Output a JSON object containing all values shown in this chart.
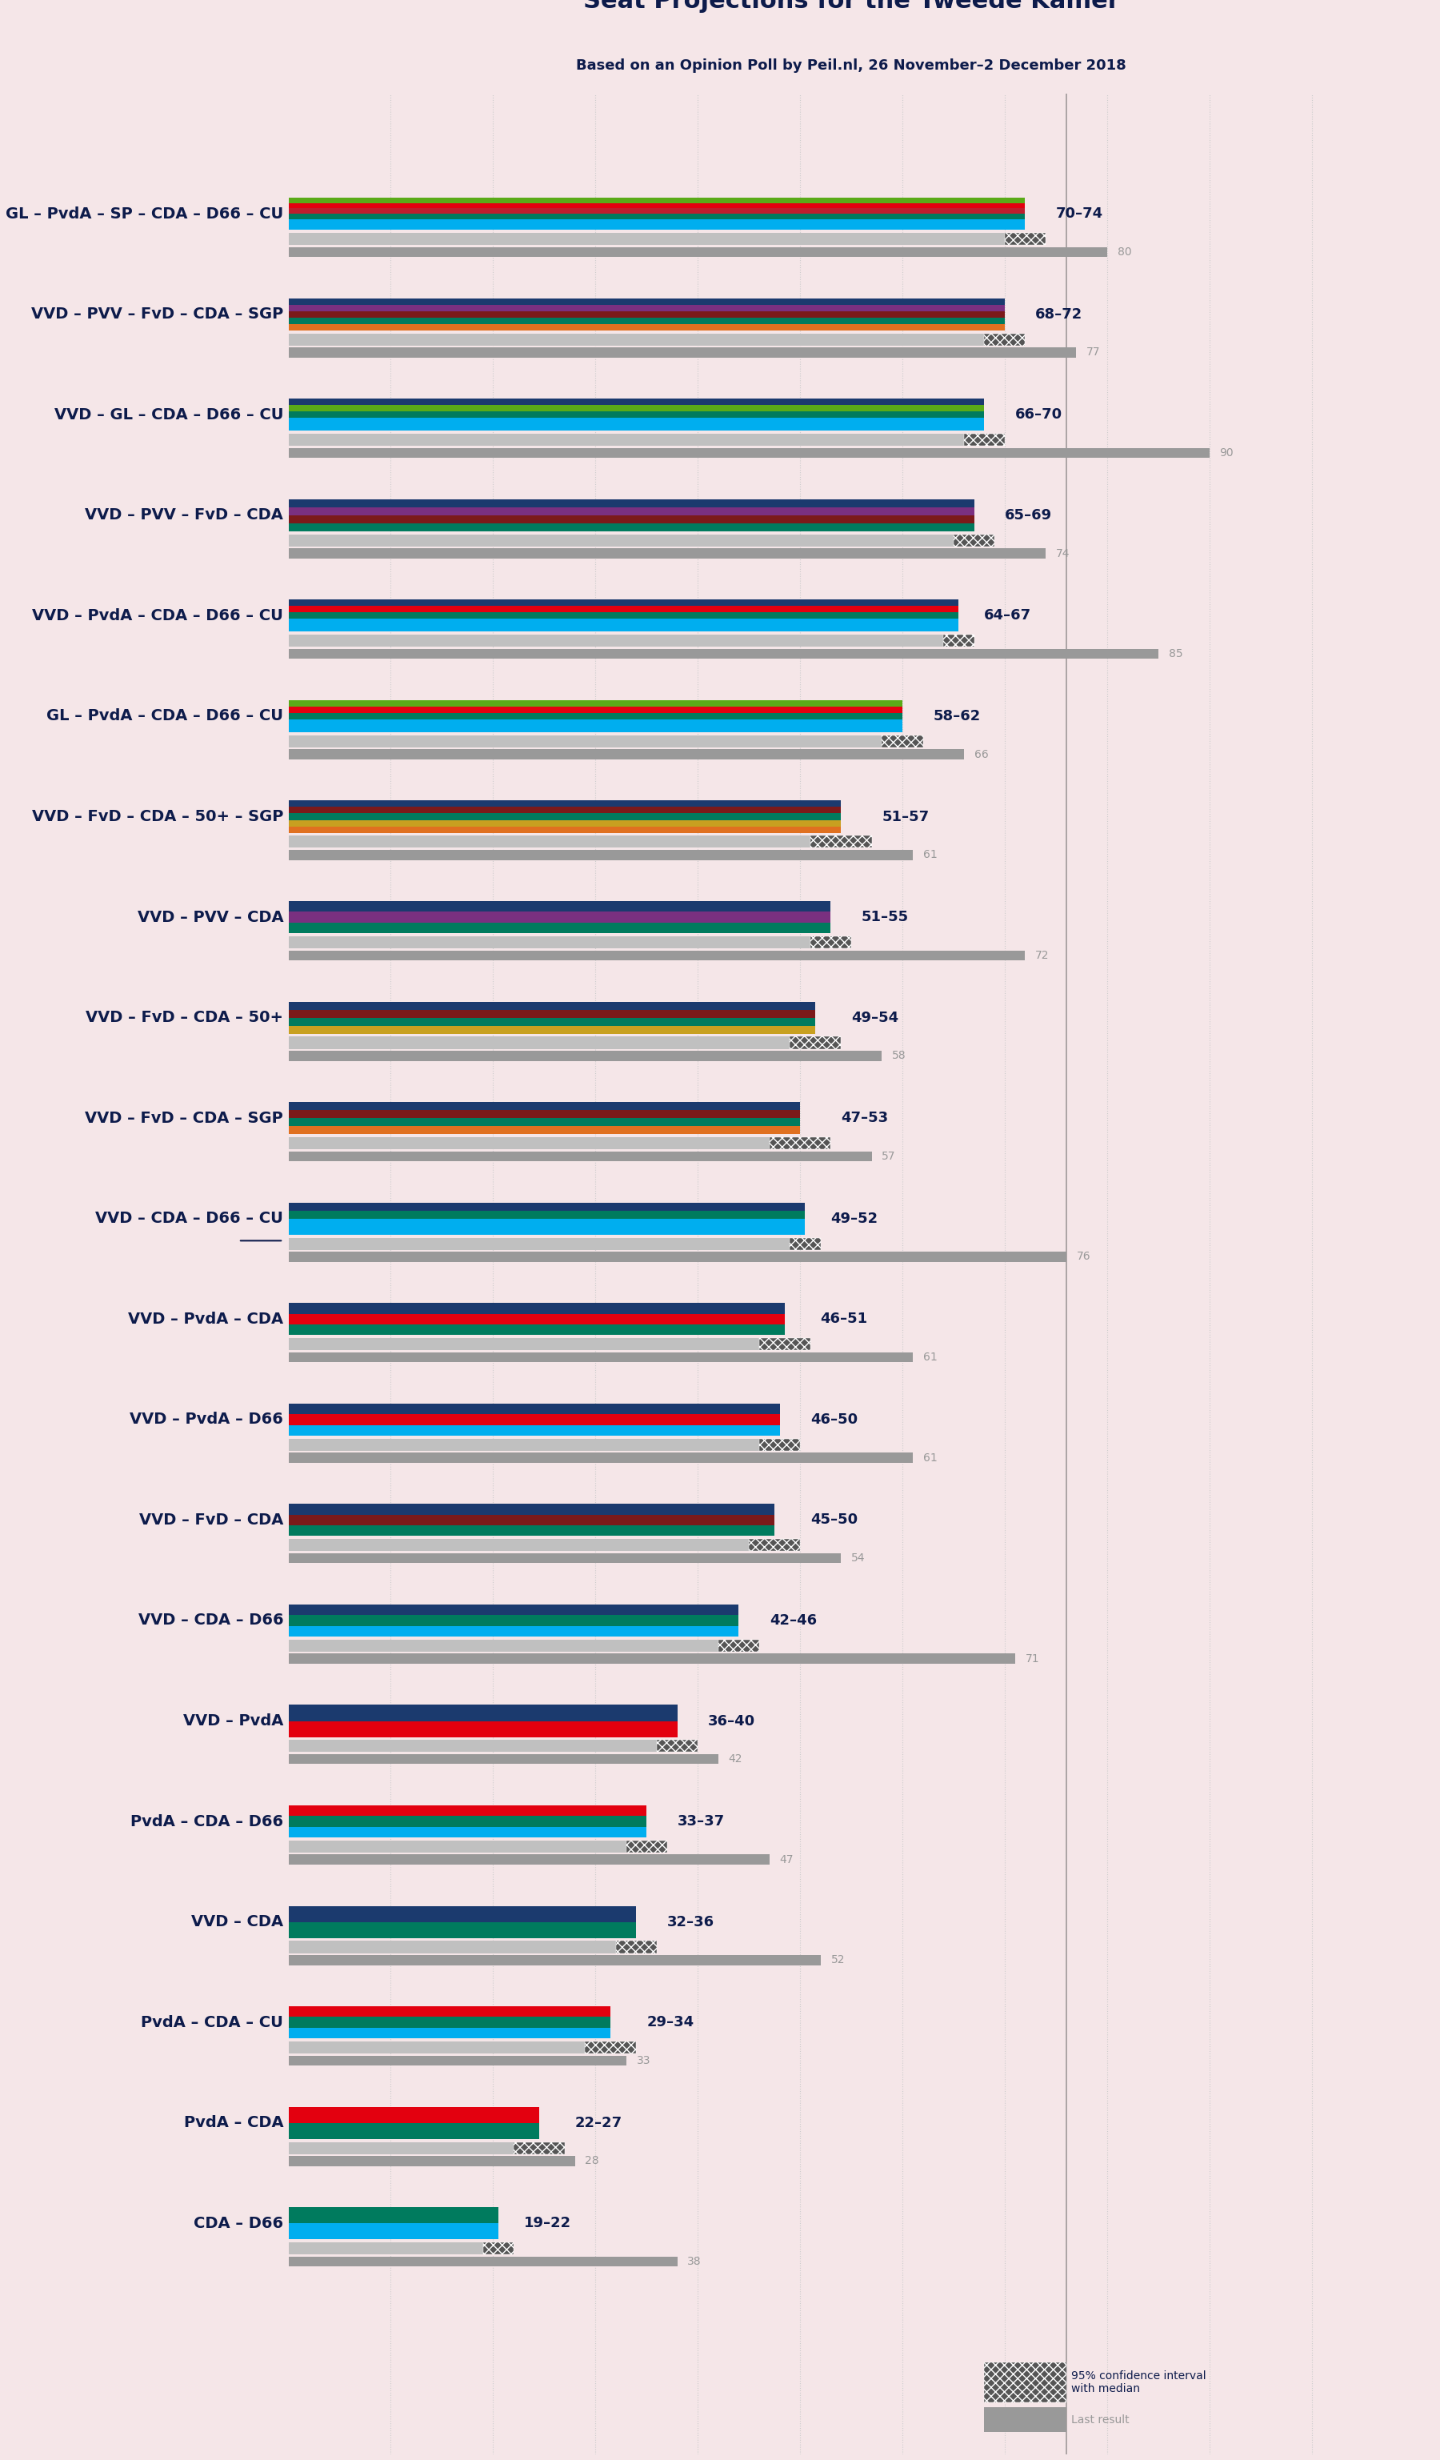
{
  "title": "Seat Projections for the Tweede Kamer",
  "subtitle": "Based on an Opinion Poll by Peil.nl, 26 November–2 December 2018",
  "background_color": "#f5e6e8",
  "coalitions": [
    {
      "name": "GL – PvdA – SP – CDA – D66 – CU",
      "range_low": 70,
      "range_high": 74,
      "last_result": 80,
      "underline": false
    },
    {
      "name": "VVD – PVV – FvD – CDA – SGP",
      "range_low": 68,
      "range_high": 72,
      "last_result": 77,
      "underline": false
    },
    {
      "name": "VVD – GL – CDA – D66 – CU",
      "range_low": 66,
      "range_high": 70,
      "last_result": 90,
      "underline": false
    },
    {
      "name": "VVD – PVV – FvD – CDA",
      "range_low": 65,
      "range_high": 69,
      "last_result": 74,
      "underline": false
    },
    {
      "name": "VVD – PvdA – CDA – D66 – CU",
      "range_low": 64,
      "range_high": 67,
      "last_result": 85,
      "underline": false
    },
    {
      "name": "GL – PvdA – CDA – D66 – CU",
      "range_low": 58,
      "range_high": 62,
      "last_result": 66,
      "underline": false
    },
    {
      "name": "VVD – FvD – CDA – 50+ – SGP",
      "range_low": 51,
      "range_high": 57,
      "last_result": 61,
      "underline": false
    },
    {
      "name": "VVD – PVV – CDA",
      "range_low": 51,
      "range_high": 55,
      "last_result": 72,
      "underline": false
    },
    {
      "name": "VVD – FvD – CDA – 50+",
      "range_low": 49,
      "range_high": 54,
      "last_result": 58,
      "underline": false
    },
    {
      "name": "VVD – FvD – CDA – SGP",
      "range_low": 47,
      "range_high": 53,
      "last_result": 57,
      "underline": false
    },
    {
      "name": "VVD – CDA – D66 – CU",
      "range_low": 49,
      "range_high": 52,
      "last_result": 76,
      "underline": true
    },
    {
      "name": "VVD – PvdA – CDA",
      "range_low": 46,
      "range_high": 51,
      "last_result": 61,
      "underline": false
    },
    {
      "name": "VVD – PvdA – D66",
      "range_low": 46,
      "range_high": 50,
      "last_result": 61,
      "underline": false
    },
    {
      "name": "VVD – FvD – CDA",
      "range_low": 45,
      "range_high": 50,
      "last_result": 54,
      "underline": false
    },
    {
      "name": "VVD – CDA – D66",
      "range_low": 42,
      "range_high": 46,
      "last_result": 71,
      "underline": false
    },
    {
      "name": "VVD – PvdA",
      "range_low": 36,
      "range_high": 40,
      "last_result": 42,
      "underline": false
    },
    {
      "name": "PvdA – CDA – D66",
      "range_low": 33,
      "range_high": 37,
      "last_result": 47,
      "underline": false
    },
    {
      "name": "VVD – CDA",
      "range_low": 32,
      "range_high": 36,
      "last_result": 52,
      "underline": false
    },
    {
      "name": "PvdA – CDA – CU",
      "range_low": 29,
      "range_high": 34,
      "last_result": 33,
      "underline": false
    },
    {
      "name": "PvdA – CDA",
      "range_low": 22,
      "range_high": 27,
      "last_result": 28,
      "underline": false
    },
    {
      "name": "CDA – D66",
      "range_low": 19,
      "range_high": 22,
      "last_result": 38,
      "underline": false
    }
  ],
  "coalition_parties": [
    [
      "GL",
      "PvdA",
      "SP",
      "CDA",
      "D66",
      "CU"
    ],
    [
      "VVD",
      "PVV",
      "FvD",
      "CDA",
      "SGP"
    ],
    [
      "VVD",
      "GL",
      "CDA",
      "D66",
      "CU"
    ],
    [
      "VVD",
      "PVV",
      "FvD",
      "CDA"
    ],
    [
      "VVD",
      "PvdA",
      "CDA",
      "D66",
      "CU"
    ],
    [
      "GL",
      "PvdA",
      "CDA",
      "D66",
      "CU"
    ],
    [
      "VVD",
      "FvD",
      "CDA",
      "50+",
      "SGP"
    ],
    [
      "VVD",
      "PVV",
      "CDA"
    ],
    [
      "VVD",
      "FvD",
      "CDA",
      "50+"
    ],
    [
      "VVD",
      "FvD",
      "CDA",
      "SGP"
    ],
    [
      "VVD",
      "CDA",
      "D66",
      "CU"
    ],
    [
      "VVD",
      "PvdA",
      "CDA"
    ],
    [
      "VVD",
      "PvdA",
      "D66"
    ],
    [
      "VVD",
      "FvD",
      "CDA"
    ],
    [
      "VVD",
      "CDA",
      "D66"
    ],
    [
      "VVD",
      "PvdA"
    ],
    [
      "PvdA",
      "CDA",
      "D66"
    ],
    [
      "VVD",
      "CDA"
    ],
    [
      "PvdA",
      "CDA",
      "CU"
    ],
    [
      "PvdA",
      "CDA"
    ],
    [
      "CDA",
      "D66"
    ]
  ],
  "party_colors": {
    "GL": "#5aaa18",
    "PvdA": "#e3000f",
    "SP": "#be1e2d",
    "CDA": "#007b5e",
    "D66": "#00aeef",
    "CU": "#00aeef",
    "VVD": "#1b3a6e",
    "PVV": "#7a3080",
    "FvD": "#7b1a1a",
    "SGP": "#e07020",
    "50+": "#c8a020"
  },
  "xlim_max": 100,
  "majority_line": 76,
  "text_color": "#0d1b4b",
  "label_color": "#0d1b4b",
  "last_result_color": "#999999",
  "ci_color": "#aaaaaa",
  "grid_color": "#cccccc"
}
